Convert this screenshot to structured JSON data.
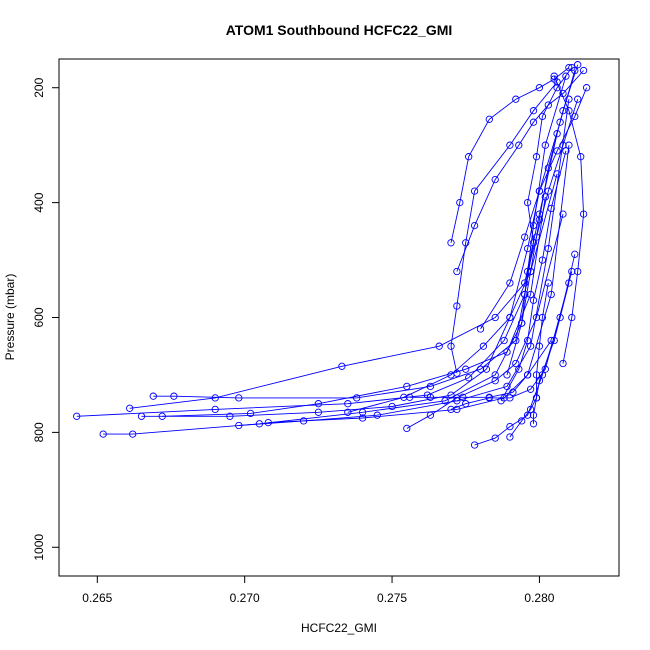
{
  "chart_data": {
    "type": "scatter",
    "title": "ATOM1 Southbound HCFC22_GMI",
    "xlabel": "HCFC22_GMI",
    "ylabel": "Pressure (mbar)",
    "xlim": [
      0.2637,
      0.2827
    ],
    "ylim": [
      1050,
      150
    ],
    "y_reversed": true,
    "x_ticks": [
      0.265,
      0.27,
      0.275,
      0.28
    ],
    "x_tick_labels": [
      "0.265",
      "0.270",
      "0.275",
      "0.280"
    ],
    "y_ticks": [
      200,
      400,
      600,
      800,
      1000
    ],
    "y_tick_labels": [
      "200",
      "400",
      "600",
      "800",
      "1000"
    ],
    "grid": false,
    "legend": "none",
    "series_color": "#0000ff",
    "marker": "open-circle",
    "series": [
      {
        "x": [
          0.2643,
          0.269,
          0.2735,
          0.2762,
          0.2776,
          0.2788,
          0.2795,
          0.2798,
          0.2796,
          0.2799,
          0.2801,
          0.2806,
          0.2811
        ],
        "y": [
          772,
          760,
          750,
          735,
          705,
          640,
          560,
          470,
          400,
          320,
          250,
          200,
          165
        ]
      },
      {
        "x": [
          0.2652,
          0.2662,
          0.2705,
          0.274,
          0.2768,
          0.2785,
          0.2794,
          0.2797,
          0.28,
          0.2803,
          0.2808,
          0.2813
        ],
        "y": [
          803,
          803,
          785,
          765,
          745,
          700,
          610,
          520,
          430,
          340,
          240,
          160
        ]
      },
      {
        "x": [
          0.2665,
          0.2695,
          0.2725,
          0.275,
          0.277,
          0.2782,
          0.279,
          0.2796,
          0.28,
          0.2807,
          0.2812
        ],
        "y": [
          772,
          772,
          765,
          755,
          735,
          690,
          600,
          480,
          380,
          260,
          170
        ]
      },
      {
        "x": [
          0.2669,
          0.2676,
          0.2698,
          0.2738,
          0.2763,
          0.278,
          0.2792,
          0.2795,
          0.2798,
          0.2802,
          0.2809
        ],
        "y": [
          737,
          737,
          740,
          740,
          720,
          690,
          640,
          560,
          440,
          300,
          180
        ]
      },
      {
        "x": [
          0.2661,
          0.269,
          0.2733,
          0.2766,
          0.2785,
          0.2795,
          0.28,
          0.2806
        ],
        "y": [
          758,
          740,
          685,
          650,
          600,
          540,
          420,
          280
        ]
      },
      {
        "x": [
          0.2698,
          0.272,
          0.2745,
          0.2772,
          0.2789,
          0.2797,
          0.2803,
          0.281
        ],
        "y": [
          788,
          780,
          770,
          745,
          720,
          650,
          480,
          220
        ]
      },
      {
        "x": [
          0.2672,
          0.2702,
          0.2725,
          0.2755,
          0.2775,
          0.2789,
          0.2797,
          0.2802
        ],
        "y": [
          772,
          767,
          750,
          720,
          690,
          660,
          560,
          390
        ]
      },
      {
        "x": [
          0.2708,
          0.274,
          0.2772,
          0.2788,
          0.2796,
          0.2804,
          0.281
        ],
        "y": [
          783,
          775,
          760,
          740,
          700,
          560,
          300
        ]
      },
      {
        "x": [
          0.2735,
          0.2754,
          0.277,
          0.2781,
          0.279,
          0.2797,
          0.2806
        ],
        "y": [
          765,
          739,
          700,
          650,
          600,
          520,
          350
        ]
      },
      {
        "x": [
          0.2755,
          0.2763,
          0.2772,
          0.2785,
          0.2792,
          0.2799,
          0.2808
        ],
        "y": [
          793,
          770,
          740,
          710,
          680,
          600,
          420
        ]
      },
      {
        "x": [
          0.2756,
          0.2763,
          0.2774,
          0.2783,
          0.2791,
          0.2796,
          0.2804
        ],
        "y": [
          739,
          739,
          739,
          739,
          730,
          700,
          640
        ]
      },
      {
        "x": [
          0.277,
          0.2775,
          0.2783,
          0.279,
          0.2797,
          0.2802,
          0.2811
        ],
        "y": [
          760,
          750,
          740,
          740,
          725,
          690,
          520
        ]
      },
      {
        "x": [
          0.2778,
          0.2785,
          0.279,
          0.2796,
          0.2801,
          0.2807,
          0.2812
        ],
        "y": [
          822,
          810,
          790,
          770,
          700,
          600,
          490
        ]
      },
      {
        "x": [
          0.279,
          0.2794,
          0.2797,
          0.2799,
          0.28,
          0.2805,
          0.281
        ],
        "y": [
          808,
          780,
          760,
          740,
          710,
          640,
          540
        ]
      },
      {
        "x": [
          0.2798,
          0.2798,
          0.2799,
          0.2799,
          0.28,
          0.2801,
          0.2803
        ],
        "y": [
          785,
          770,
          740,
          700,
          650,
          600,
          540
        ]
      },
      {
        "x": [
          0.2772,
          0.277,
          0.2772,
          0.2775,
          0.2778,
          0.279,
          0.2798,
          0.2806
        ],
        "y": [
          697,
          650,
          580,
          470,
          380,
          300,
          240,
          190
        ]
      },
      {
        "x": [
          0.277,
          0.2773,
          0.2776,
          0.2783,
          0.2792,
          0.28,
          0.2805,
          0.281
        ],
        "y": [
          470,
          400,
          320,
          255,
          220,
          200,
          185,
          165
        ]
      },
      {
        "x": [
          0.2772,
          0.2778,
          0.2785,
          0.2793,
          0.2798,
          0.2803,
          0.2808,
          0.2815
        ],
        "y": [
          520,
          440,
          360,
          300,
          260,
          230,
          210,
          170
        ]
      },
      {
        "x": [
          0.278,
          0.279,
          0.2795,
          0.28,
          0.2806,
          0.2812,
          0.2816
        ],
        "y": [
          620,
          540,
          460,
          380,
          310,
          250,
          200
        ]
      },
      {
        "x": [
          0.2789,
          0.2794,
          0.2796,
          0.2799,
          0.2803,
          0.2808,
          0.2813
        ],
        "y": [
          700,
          610,
          520,
          460,
          380,
          300,
          220
        ]
      },
      {
        "x": [
          0.2808,
          0.2811,
          0.2813,
          0.2815,
          0.2814,
          0.281,
          0.2805
        ],
        "y": [
          680,
          600,
          520,
          420,
          320,
          240,
          180
        ]
      },
      {
        "x": [
          0.2787,
          0.2793,
          0.2796,
          0.2798,
          0.2801,
          0.2804,
          0.2809
        ],
        "y": [
          745,
          690,
          640,
          570,
          500,
          410,
          310
        ]
      }
    ]
  }
}
